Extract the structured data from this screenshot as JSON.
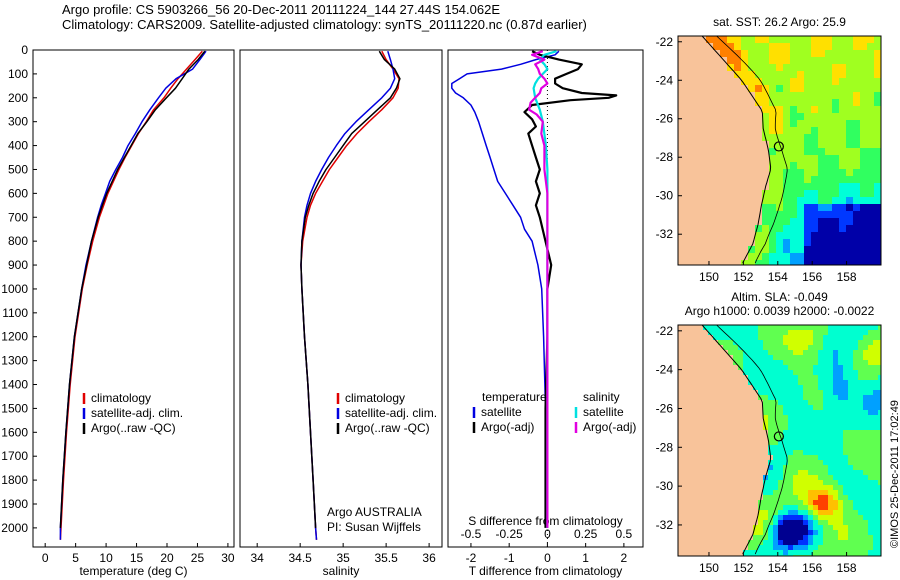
{
  "header": {
    "title_line1": "Argo profile: CS 5903266_56 20-Dec-2011 20111224_144 27.44S 154.062E",
    "title_line2": "Climatology: CARS2009. Satellite-adjusted climatology: synTS_20111220.nc (0.87d earlier)"
  },
  "colors": {
    "climatology": "#e00000",
    "satellite": "#0000e0",
    "argo": "#000000",
    "satellite_diff": "#00e0e0",
    "argo_salinity_diff": "#e000e0",
    "land": "#f8c39a"
  },
  "chart_data": [
    {
      "id": "temperature",
      "type": "line",
      "xlabel": "temperature (deg C)",
      "ylabel": "",
      "xlim": [
        -2,
        31
      ],
      "ylim": [
        2080,
        0
      ],
      "xticks": [
        "0",
        "5",
        "10",
        "15",
        "20",
        "25",
        "30"
      ],
      "xtick_values": [
        0,
        5,
        10,
        15,
        20,
        25,
        30
      ],
      "yticks": [
        "0",
        "100",
        "200",
        "300",
        "400",
        "500",
        "600",
        "700",
        "800",
        "900",
        "1000",
        "1100",
        "1200",
        "1300",
        "1400",
        "1500",
        "1600",
        "1700",
        "1800",
        "1900",
        "2000"
      ],
      "ytick_values": [
        0,
        100,
        200,
        300,
        400,
        500,
        600,
        700,
        800,
        900,
        1000,
        1100,
        1200,
        1300,
        1400,
        1500,
        1600,
        1700,
        1800,
        1900,
        2000
      ],
      "legend": [
        "climatology",
        "satellite-adj. clim.",
        "Argo(..raw -QC)"
      ],
      "series": [
        {
          "name": "climatology",
          "color_key": "climatology",
          "depth": [
            5,
            40,
            80,
            120,
            160,
            200,
            250,
            300,
            350,
            400,
            450,
            500,
            550,
            600,
            650,
            700,
            800,
            900,
            1000,
            1200,
            1400,
            1600,
            1800,
            2000,
            2050
          ],
          "values": [
            25.8,
            24.6,
            23.2,
            21.8,
            20.6,
            19.5,
            17.8,
            16.6,
            15.3,
            14.2,
            13.1,
            12.1,
            11.2,
            10.3,
            9.6,
            8.9,
            7.8,
            6.9,
            6.1,
            4.9,
            4.1,
            3.5,
            3.0,
            2.6,
            2.5
          ]
        },
        {
          "name": "satellite-adj. clim.",
          "color_key": "satellite",
          "depth": [
            5,
            40,
            80,
            120,
            160,
            200,
            250,
            300,
            350,
            400,
            450,
            500,
            550,
            600,
            650,
            700,
            800,
            900,
            1000,
            1200,
            1400,
            1600,
            1800,
            2000,
            2050
          ],
          "values": [
            26.4,
            25.4,
            24.2,
            21.5,
            19.8,
            18.6,
            17.2,
            15.9,
            14.8,
            13.6,
            12.7,
            11.6,
            10.6,
            9.9,
            9.2,
            8.6,
            7.6,
            6.7,
            6.0,
            4.8,
            4.0,
            3.4,
            2.9,
            2.5,
            2.5
          ]
        },
        {
          "name": "Argo(..raw -QC)",
          "color_key": "argo",
          "depth": [
            5,
            40,
            80,
            120,
            160,
            200,
            250,
            300,
            350,
            400,
            450,
            500,
            550,
            600,
            650,
            700,
            800,
            900,
            1000,
            1200,
            1400,
            1600,
            1800,
            2000
          ],
          "values": [
            26.2,
            25.1,
            23.6,
            22.5,
            21.4,
            19.9,
            18.1,
            16.7,
            15.2,
            14.1,
            13.0,
            11.9,
            11.0,
            10.1,
            9.4,
            8.7,
            7.6,
            6.8,
            6.0,
            4.8,
            4.0,
            3.4,
            2.9,
            2.5
          ]
        }
      ]
    },
    {
      "id": "salinity",
      "type": "line",
      "xlabel": "salinity",
      "xlim": [
        33.8,
        36.15
      ],
      "ylim": [
        2080,
        0
      ],
      "xticks": [
        "34",
        "34.5",
        "35",
        "35.5",
        "36"
      ],
      "xtick_values": [
        34,
        34.5,
        35,
        35.5,
        36
      ],
      "legend": [
        "climatology",
        "satellite-adj. clim.",
        "Argo(..raw -QC)"
      ],
      "annotation": [
        "Argo AUSTRALIA",
        "PI: Susan Wijffels"
      ],
      "series": [
        {
          "name": "climatology",
          "color_key": "climatology",
          "depth": [
            5,
            40,
            80,
            120,
            160,
            200,
            250,
            300,
            350,
            400,
            450,
            500,
            550,
            600,
            650,
            700,
            800,
            900,
            1000,
            1200,
            1400,
            1600,
            1800,
            2000,
            2050
          ],
          "values": [
            35.45,
            35.5,
            35.58,
            35.65,
            35.64,
            35.58,
            35.45,
            35.3,
            35.16,
            35.04,
            34.94,
            34.84,
            34.76,
            34.68,
            34.62,
            34.58,
            34.53,
            34.51,
            34.52,
            34.55,
            34.59,
            34.62,
            34.65,
            34.68,
            34.69
          ]
        },
        {
          "name": "satellite-adj. clim.",
          "color_key": "satellite",
          "depth": [
            5,
            40,
            80,
            120,
            160,
            200,
            250,
            300,
            350,
            400,
            450,
            500,
            550,
            600,
            650,
            700,
            800,
            900,
            1000,
            1200,
            1400,
            1600,
            1800,
            2000,
            2050
          ],
          "values": [
            35.52,
            35.55,
            35.58,
            35.6,
            35.55,
            35.45,
            35.3,
            35.15,
            35.02,
            34.92,
            34.83,
            34.75,
            34.68,
            34.62,
            34.58,
            34.55,
            34.52,
            34.51,
            34.52,
            34.55,
            34.59,
            34.62,
            34.65,
            34.68,
            34.69
          ]
        },
        {
          "name": "Argo(..raw -QC)",
          "color_key": "argo",
          "depth": [
            5,
            40,
            80,
            120,
            160,
            200,
            250,
            300,
            350,
            400,
            450,
            500,
            550,
            600,
            650,
            700,
            800,
            900,
            1000,
            1200,
            1400,
            1600,
            1800,
            2000
          ],
          "values": [
            35.42,
            35.48,
            35.6,
            35.66,
            35.62,
            35.55,
            35.4,
            35.25,
            35.1,
            35.0,
            34.9,
            34.8,
            34.72,
            34.65,
            34.6,
            34.56,
            34.52,
            34.51,
            34.52,
            34.55,
            34.59,
            34.62,
            34.65,
            34.68
          ]
        }
      ]
    },
    {
      "id": "difference",
      "type": "line",
      "xlabel": "T difference from climatology",
      "xlabel_top": "S difference from climatology",
      "xlim": [
        -2.6,
        2.5
      ],
      "ylim": [
        2080,
        0
      ],
      "xticks": [
        "-2",
        "-1",
        "0",
        "1",
        "2"
      ],
      "xtick_values": [
        -2,
        -1,
        0,
        1,
        2
      ],
      "sticks": [
        "-0.5",
        "-0.25",
        "0",
        "0.25",
        "0.5"
      ],
      "stick_values": [
        -0.5,
        -0.25,
        0,
        0.25,
        0.5
      ],
      "salinity_scale": 0.25,
      "legend_temperature_title": "temperature",
      "legend_salinity_title": "salinity",
      "legend_temperature": [
        "satellite",
        "Argo(-adj)"
      ],
      "legend_salinity": [
        "satellite",
        "Argo(-adj)"
      ],
      "series": [
        {
          "name": "temperature satellite",
          "color_key": "satellite",
          "depth": [
            5,
            20,
            40,
            60,
            80,
            100,
            120,
            140,
            160,
            180,
            200,
            230,
            260,
            300,
            350,
            400,
            450,
            500,
            550,
            600,
            650,
            700,
            750,
            800,
            900,
            1000,
            1200,
            1500,
            2000
          ],
          "values": [
            0.3,
            0.2,
            -0.3,
            -0.7,
            -1.2,
            -2.1,
            -2.3,
            -2.5,
            -2.5,
            -2.4,
            -2.2,
            -2.0,
            -1.9,
            -1.8,
            -1.7,
            -1.6,
            -1.5,
            -1.4,
            -1.3,
            -1.1,
            -0.9,
            -0.7,
            -0.6,
            -0.4,
            -0.25,
            -0.15,
            -0.1,
            -0.05,
            0.0
          ]
        },
        {
          "name": "temperature Argo",
          "color_key": "argo",
          "depth": [
            5,
            20,
            40,
            60,
            80,
            100,
            120,
            140,
            160,
            180,
            190,
            200,
            210,
            230,
            260,
            290,
            320,
            350,
            400,
            450,
            500,
            550,
            600,
            650,
            700,
            800,
            900,
            1000,
            1200,
            1500,
            2000
          ],
          "values": [
            -0.4,
            -0.2,
            0.3,
            0.9,
            0.8,
            0.5,
            0.2,
            0.2,
            0.4,
            0.9,
            1.8,
            1.6,
            0.6,
            -0.4,
            -0.6,
            -0.4,
            -0.3,
            -0.5,
            -0.4,
            -0.3,
            -0.2,
            -0.3,
            -0.2,
            -0.3,
            -0.2,
            -0.05,
            0.1,
            0.0,
            0.0,
            -0.05,
            -0.05
          ]
        },
        {
          "name": "salinity satellite",
          "color_key": "satellite_diff",
          "depth": [
            5,
            20,
            40,
            60,
            80,
            100,
            120,
            140,
            160,
            200,
            250,
            300,
            400,
            500,
            600,
            800,
            1000,
            1500,
            2000
          ],
          "values": [
            0.06,
            -0.02,
            -0.05,
            -0.02,
            0.0,
            -0.03,
            -0.06,
            -0.08,
            -0.09,
            -0.08,
            -0.05,
            -0.03,
            -0.01,
            0.0,
            0.0,
            0.0,
            0.0,
            0.0,
            0.0
          ]
        },
        {
          "name": "salinity Argo",
          "color_key": "argo_salinity_diff",
          "depth": [
            5,
            20,
            40,
            60,
            80,
            100,
            120,
            140,
            160,
            180,
            200,
            220,
            250,
            270,
            300,
            350,
            400,
            500,
            600,
            800,
            1000,
            1200,
            1500,
            1800,
            2000
          ],
          "values": [
            -0.03,
            -0.1,
            -0.02,
            -0.08,
            -0.06,
            -0.05,
            -0.02,
            0.0,
            -0.04,
            -0.05,
            -0.08,
            -0.11,
            -0.12,
            -0.07,
            -0.03,
            -0.04,
            -0.02,
            -0.02,
            0.0,
            0.0,
            0.0,
            0.0,
            0.0,
            0.0,
            0.0
          ]
        }
      ]
    },
    {
      "id": "sst_map",
      "type": "heatmap",
      "title": "sat. SST: 26.2  Argo: 25.9",
      "xlim": [
        148.2,
        160.0
      ],
      "ylim": [
        -33.6,
        -21.7
      ],
      "xticks": [
        "150",
        "152",
        "154",
        "156",
        "158"
      ],
      "xtick_values": [
        150,
        152,
        154,
        156,
        158
      ],
      "yticks": [
        "-22",
        "-24",
        "-26",
        "-28",
        "-30",
        "-32"
      ],
      "ytick_values": [
        -22,
        -24,
        -26,
        -28,
        -30,
        -32
      ],
      "marker": {
        "lon": 154.062,
        "lat": -27.44
      },
      "palette": [
        "#0000a8",
        "#0038ff",
        "#00a0ff",
        "#00ffd8",
        "#30ff60",
        "#a0ff20",
        "#ffe000",
        "#ff8000"
      ]
    },
    {
      "id": "sla_map",
      "type": "heatmap",
      "title": "Altim. SLA: -0.049",
      "subtitle": "Argo h1000: 0.0039  h2000: -0.0022",
      "xlim": [
        148.2,
        160.0
      ],
      "ylim": [
        -33.6,
        -21.7
      ],
      "xticks": [
        "150",
        "152",
        "154",
        "156",
        "158"
      ],
      "xtick_values": [
        150,
        152,
        154,
        156,
        158
      ],
      "yticks": [
        "-22",
        "-24",
        "-26",
        "-28",
        "-30",
        "-32"
      ],
      "ytick_values": [
        -22,
        -24,
        -26,
        -28,
        -30,
        -32
      ],
      "marker": {
        "lon": 154.062,
        "lat": -27.44
      },
      "palette": [
        "#000090",
        "#0030ff",
        "#00a0ff",
        "#00ffd0",
        "#60ff50",
        "#d0ff00",
        "#ffc000",
        "#ff4000"
      ]
    }
  ],
  "footer": {
    "credit": "©IMOS 25-Dec-2011 17:02:49"
  }
}
